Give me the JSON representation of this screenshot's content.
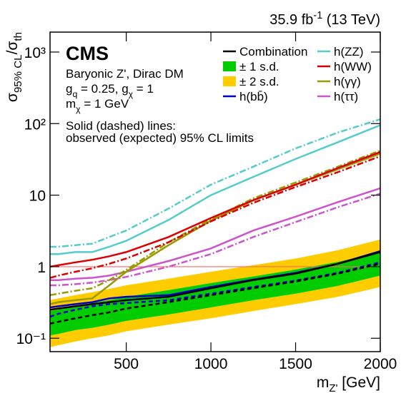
{
  "lumi": [
    {
      "t": "35.9 fb"
    },
    {
      "sup": "-1"
    },
    {
      "t": " (13 TeV)"
    }
  ],
  "chart_data": {
    "type": "line",
    "log_y": true,
    "y_label": [
      {
        "t": "σ"
      },
      {
        "sub": "95% CL"
      },
      {
        "t": "/σ"
      },
      {
        "sub": "th"
      }
    ],
    "x_label": [
      {
        "t": "m"
      },
      {
        "sub": "Z'"
      },
      {
        "t": " [GeV]"
      }
    ],
    "xlim": [
      50,
      2000
    ],
    "ylim": [
      0.065,
      1900
    ],
    "xticks": [
      500,
      1000,
      1500,
      2000
    ],
    "yticks": [
      {
        "value": 0.1,
        "label": "10⁻¹"
      },
      1,
      10,
      {
        "value": 100,
        "label": "10²"
      },
      {
        "value": 1000,
        "label": "10³"
      }
    ],
    "experiment": "CMS",
    "model": [
      [
        {
          "t": "Baryonic Z', Dirac DM"
        }
      ],
      [
        {
          "t": "g"
        },
        {
          "sub": "q"
        },
        {
          "t": " = 0.25, g"
        },
        {
          "sub": "χ"
        },
        {
          "t": " = 1"
        }
      ],
      [
        {
          "t": "m"
        },
        {
          "sub": "χ"
        },
        {
          "t": " = 1 GeV"
        }
      ]
    ],
    "note": [
      "Solid (dashed) lines:",
      "observed (expected) 95% CL limits"
    ],
    "reference_line": {
      "value": 1,
      "color": "#ff6666"
    },
    "x": [
      50,
      100,
      200,
      300,
      400,
      500,
      750,
      1000,
      1250,
      1500,
      1750,
      2000
    ],
    "bands": [
      {
        "name": "± 2 s.d.",
        "color": "#ffcc00",
        "low": [
          0.075,
          0.08,
          0.09,
          0.1,
          0.11,
          0.125,
          0.155,
          0.19,
          0.24,
          0.3,
          0.38,
          0.52
        ],
        "high": [
          0.34,
          0.36,
          0.4,
          0.44,
          0.49,
          0.55,
          0.68,
          0.85,
          1.05,
          1.3,
          1.7,
          2.4
        ]
      },
      {
        "name": "± 1 s.d.",
        "color": "#00cc00",
        "low": [
          0.11,
          0.115,
          0.13,
          0.14,
          0.155,
          0.175,
          0.215,
          0.27,
          0.34,
          0.42,
          0.54,
          0.75
        ],
        "high": [
          0.24,
          0.25,
          0.28,
          0.31,
          0.34,
          0.38,
          0.47,
          0.59,
          0.73,
          0.91,
          1.17,
          1.6
        ]
      }
    ],
    "series": [
      {
        "name": "Combination",
        "color": "#000000",
        "expected_style": "dashed",
        "values": [
          0.25,
          0.26,
          0.28,
          0.3,
          0.32,
          0.34,
          0.38,
          0.5,
          0.65,
          0.8,
          1.1,
          1.6
        ],
        "expected": [
          0.16,
          0.17,
          0.19,
          0.21,
          0.23,
          0.26,
          0.32,
          0.4,
          0.5,
          0.62,
          0.8,
          1.1
        ]
      },
      {
        "name": "h(bb̄)",
        "color": "#0000cc",
        "expected_style": "dashed",
        "values": [
          0.27,
          0.28,
          0.3,
          0.32,
          0.36,
          0.38,
          0.4,
          0.52,
          0.66,
          0.82,
          1.1,
          1.65
        ],
        "expected": [
          0.2,
          0.22,
          0.25,
          0.28,
          0.3,
          0.31,
          0.34,
          0.42,
          0.52,
          0.64,
          0.82,
          1.15
        ]
      },
      {
        "name": "h(ZZ)",
        "color": "#55cccc",
        "expected_style": "dashdot",
        "values": [
          1.5,
          1.5,
          1.6,
          1.6,
          1.9,
          2.3,
          4.5,
          10,
          18,
          32,
          55,
          95
        ],
        "expected": [
          1.9,
          1.9,
          2,
          2.1,
          2.6,
          3.2,
          6.5,
          14,
          25,
          45,
          75,
          115
        ]
      },
      {
        "name": "h(WW)",
        "color": "#dd0000",
        "expected_style": "dashdot",
        "values": [
          1,
          1.05,
          1.15,
          1.25,
          1.4,
          1.6,
          2.6,
          4.8,
          8.5,
          14,
          24,
          40
        ],
        "expected": [
          0.7,
          0.75,
          0.85,
          0.95,
          1.1,
          1.3,
          2.2,
          4.3,
          7.8,
          13,
          21,
          35
        ]
      },
      {
        "name": "h(γγ)",
        "color": "#999900",
        "expected_style": "dashdot",
        "values": [
          0.3,
          0.32,
          0.34,
          0.36,
          0.55,
          0.85,
          2,
          4.4,
          8.5,
          14,
          23,
          38
        ],
        "expected": [
          0.4,
          0.42,
          0.46,
          0.5,
          0.65,
          0.9,
          2.2,
          4.6,
          9,
          15,
          25,
          42
        ]
      },
      {
        "name": "h(ττ)",
        "color": "#cc55cc",
        "expected_style": "dashdot",
        "values": [
          0.65,
          0.65,
          0.68,
          0.7,
          0.75,
          0.85,
          1.2,
          1.8,
          3.2,
          5,
          8,
          12.5
        ],
        "expected": [
          0.55,
          0.55,
          0.57,
          0.6,
          0.65,
          0.72,
          1.0,
          1.5,
          2.6,
          4.2,
          6.8,
          10.5
        ]
      }
    ]
  }
}
